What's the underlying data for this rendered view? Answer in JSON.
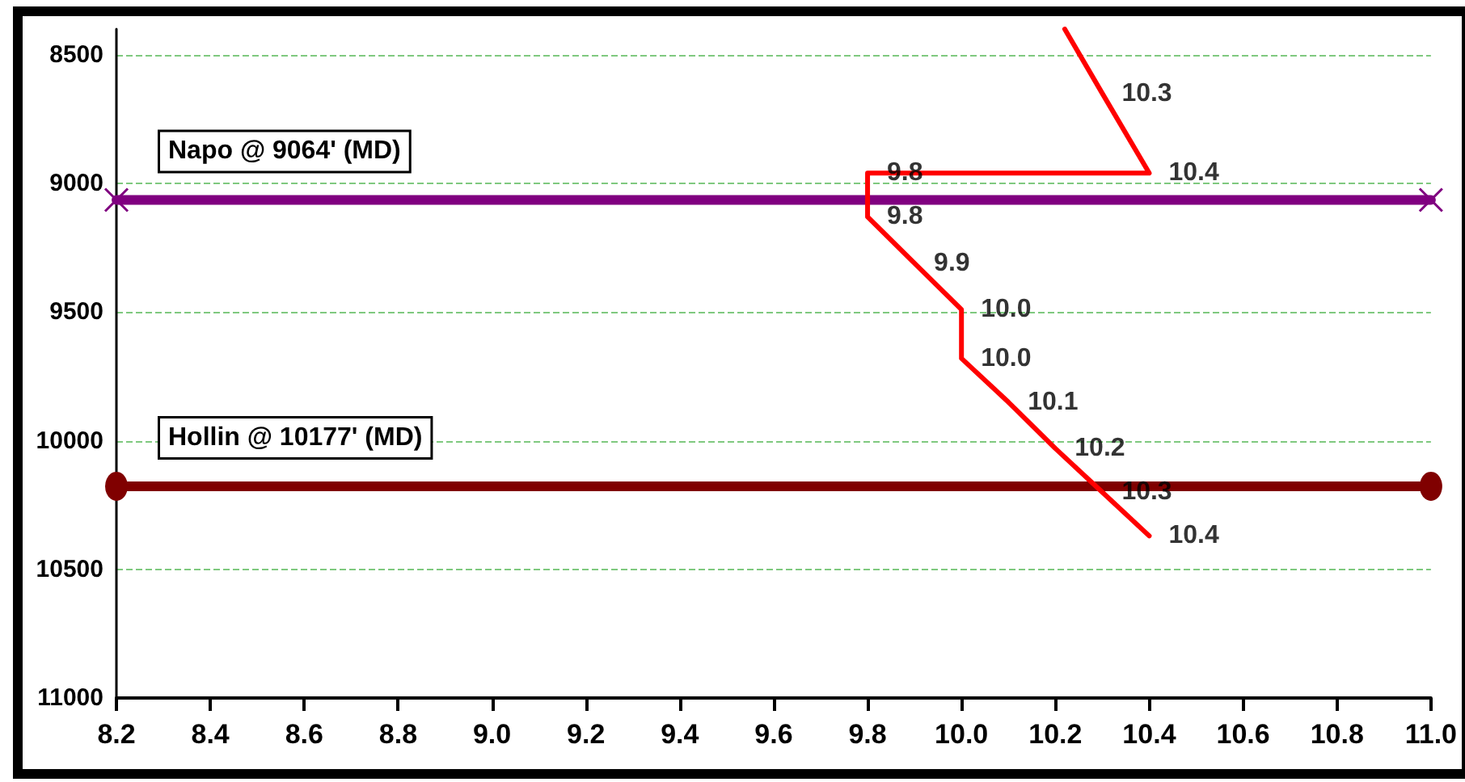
{
  "chart_data": {
    "type": "line",
    "xlim": [
      8.2,
      11.0
    ],
    "ylim": [
      11000,
      8400
    ],
    "xticks": [
      8.2,
      8.4,
      8.6,
      8.8,
      {
        "value": 9.0,
        "label": "9.0"
      },
      9.2,
      9.4,
      9.6,
      9.8,
      {
        "value": 10.0,
        "label": "10.0"
      },
      10.2,
      10.4,
      10.6,
      10.8,
      {
        "value": 11.0,
        "label": "11.0"
      }
    ],
    "yticks": [
      8500,
      9000,
      9500,
      10000,
      10500,
      11000
    ],
    "annotations": [
      {
        "text": "10.3",
        "x": 10.3,
        "y": 8650
      },
      {
        "text": "10.4",
        "x": 10.4,
        "y": 8960
      },
      {
        "text": "9.8",
        "x": 9.8,
        "y": 8960
      },
      {
        "text": "9.8",
        "x": 9.8,
        "y": 9130
      },
      {
        "text": "9.9",
        "x": 9.9,
        "y": 9310
      },
      {
        "text": "10.0",
        "x": 10.0,
        "y": 9490
      },
      {
        "text": "10.0",
        "x": 10.0,
        "y": 9680
      },
      {
        "text": "10.1",
        "x": 10.1,
        "y": 9850
      },
      {
        "text": "10.2",
        "x": 10.2,
        "y": 10030
      },
      {
        "text": "10.3",
        "x": 10.3,
        "y": 10200
      },
      {
        "text": "10.4",
        "x": 10.4,
        "y": 10370
      }
    ],
    "grid": "y",
    "legend": false,
    "line_style": "solid",
    "series": [
      {
        "color": "#ff0000",
        "marker": "none",
        "x": [
          10.22,
          10.3,
          10.4,
          9.8,
          9.8,
          9.9,
          10.0,
          10.0,
          10.1,
          10.2,
          10.3,
          10.4
        ],
        "values": [
          8400,
          8650,
          8960,
          8960,
          9130,
          9310,
          9490,
          9680,
          9850,
          10030,
          10200,
          10370
        ]
      },
      {
        "name": "Napo @ 9064' (MD)",
        "color": "#800080",
        "marker": "cross",
        "x": [
          8.2,
          11.0
        ],
        "values": [
          9064,
          9064
        ]
      },
      {
        "name": "Hollin @ 10177' (MD)",
        "color": "#800000",
        "marker": "circle",
        "x": [
          8.2,
          11.0
        ],
        "values": [
          10177,
          10177
        ]
      }
    ]
  }
}
